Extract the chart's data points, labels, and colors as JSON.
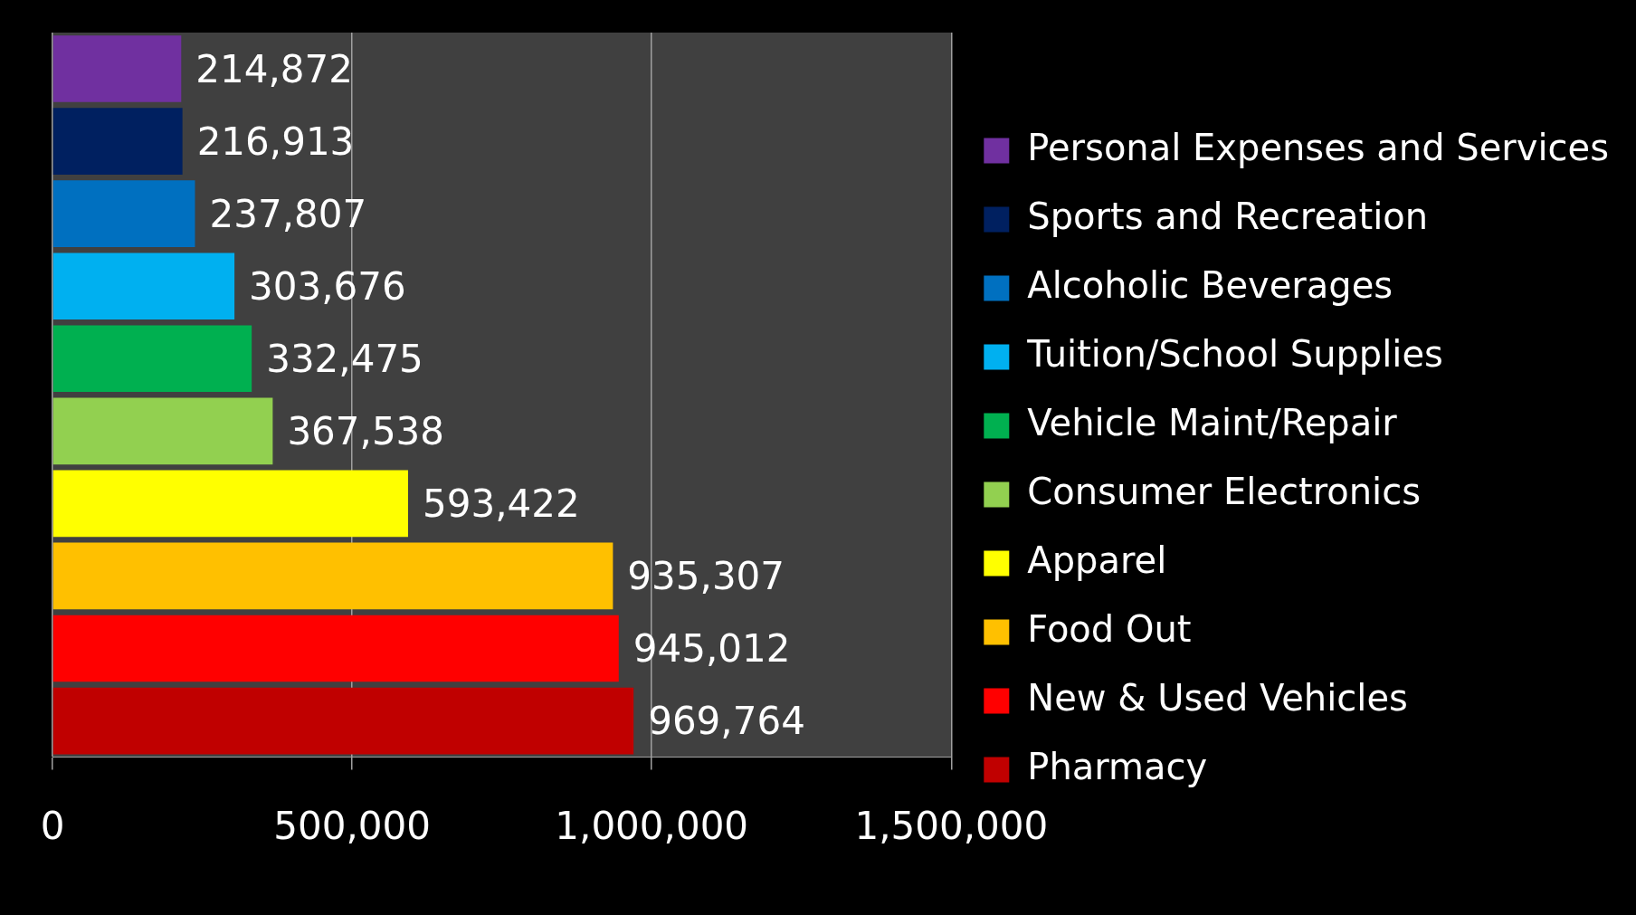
{
  "chart_data": {
    "type": "bar",
    "orientation": "horizontal",
    "categories": [
      null,
      null,
      null,
      null,
      null,
      null,
      null,
      null,
      null,
      null
    ],
    "series": [
      {
        "name": "Personal Expenses and Services",
        "color": "#7030a0",
        "values": [
          214872,
          null,
          null,
          null,
          null,
          null,
          null,
          null,
          null,
          null
        ],
        "value_labels": [
          "214,872",
          null,
          null,
          null,
          null,
          null,
          null,
          null,
          null,
          null
        ]
      },
      {
        "name": "Sports and Recreation",
        "color": "#002060",
        "values": [
          null,
          216913,
          null,
          null,
          null,
          null,
          null,
          null,
          null,
          null
        ],
        "value_labels": [
          null,
          "216,913",
          null,
          null,
          null,
          null,
          null,
          null,
          null,
          null
        ]
      },
      {
        "name": "Alcoholic Beverages",
        "color": "#0070c0",
        "values": [
          null,
          null,
          237807,
          null,
          null,
          null,
          null,
          null,
          null,
          null
        ],
        "value_labels": [
          null,
          null,
          "237,807",
          null,
          null,
          null,
          null,
          null,
          null,
          null
        ]
      },
      {
        "name": "Tuition/School Supplies",
        "color": "#00b0f0",
        "values": [
          null,
          null,
          null,
          303676,
          null,
          null,
          null,
          null,
          null,
          null
        ],
        "value_labels": [
          null,
          null,
          null,
          "303,676",
          null,
          null,
          null,
          null,
          null,
          null
        ]
      },
      {
        "name": "Vehicle Maint/Repair",
        "color": "#00b050",
        "values": [
          null,
          null,
          null,
          null,
          332475,
          null,
          null,
          null,
          null,
          null
        ],
        "value_labels": [
          null,
          null,
          null,
          null,
          "332,475",
          null,
          null,
          null,
          null,
          null
        ]
      },
      {
        "name": "Consumer Electronics",
        "color": "#92d050",
        "values": [
          null,
          null,
          null,
          null,
          null,
          367538,
          null,
          null,
          null,
          null
        ],
        "value_labels": [
          null,
          null,
          null,
          null,
          null,
          "367,538",
          null,
          null,
          null,
          null
        ]
      },
      {
        "name": "Apparel",
        "color": "#ffff00",
        "values": [
          null,
          null,
          null,
          null,
          null,
          null,
          593422,
          null,
          null,
          null
        ],
        "value_labels": [
          null,
          null,
          null,
          null,
          null,
          null,
          "593,422",
          null,
          null,
          null
        ]
      },
      {
        "name": "Food Out",
        "color": "#ffc000",
        "values": [
          null,
          null,
          null,
          null,
          null,
          null,
          null,
          935307,
          null,
          null
        ],
        "value_labels": [
          null,
          null,
          null,
          null,
          null,
          null,
          null,
          "935,307",
          null,
          null
        ]
      },
      {
        "name": "New & Used Vehicles",
        "color": "#ff0000",
        "values": [
          null,
          null,
          null,
          null,
          null,
          null,
          null,
          null,
          945012,
          null
        ],
        "value_labels": [
          null,
          null,
          null,
          null,
          null,
          null,
          null,
          null,
          "945,012",
          null
        ]
      },
      {
        "name": "Pharmacy",
        "color": "#c00000",
        "values": [
          null,
          null,
          null,
          null,
          null,
          null,
          null,
          null,
          null,
          969764
        ],
        "value_labels": [
          null,
          null,
          null,
          null,
          null,
          null,
          null,
          null,
          null,
          "969,764"
        ]
      }
    ],
    "xlim": [
      0,
      1500000
    ],
    "xticks": [
      0,
      {
        "value": 500000,
        "label": "500,000"
      },
      {
        "value": 1000000,
        "label": "1,000,000"
      },
      {
        "value": 1500000,
        "label": "1,500,000"
      }
    ],
    "grid": "x",
    "legend": "right",
    "tick_labels": "x"
  }
}
